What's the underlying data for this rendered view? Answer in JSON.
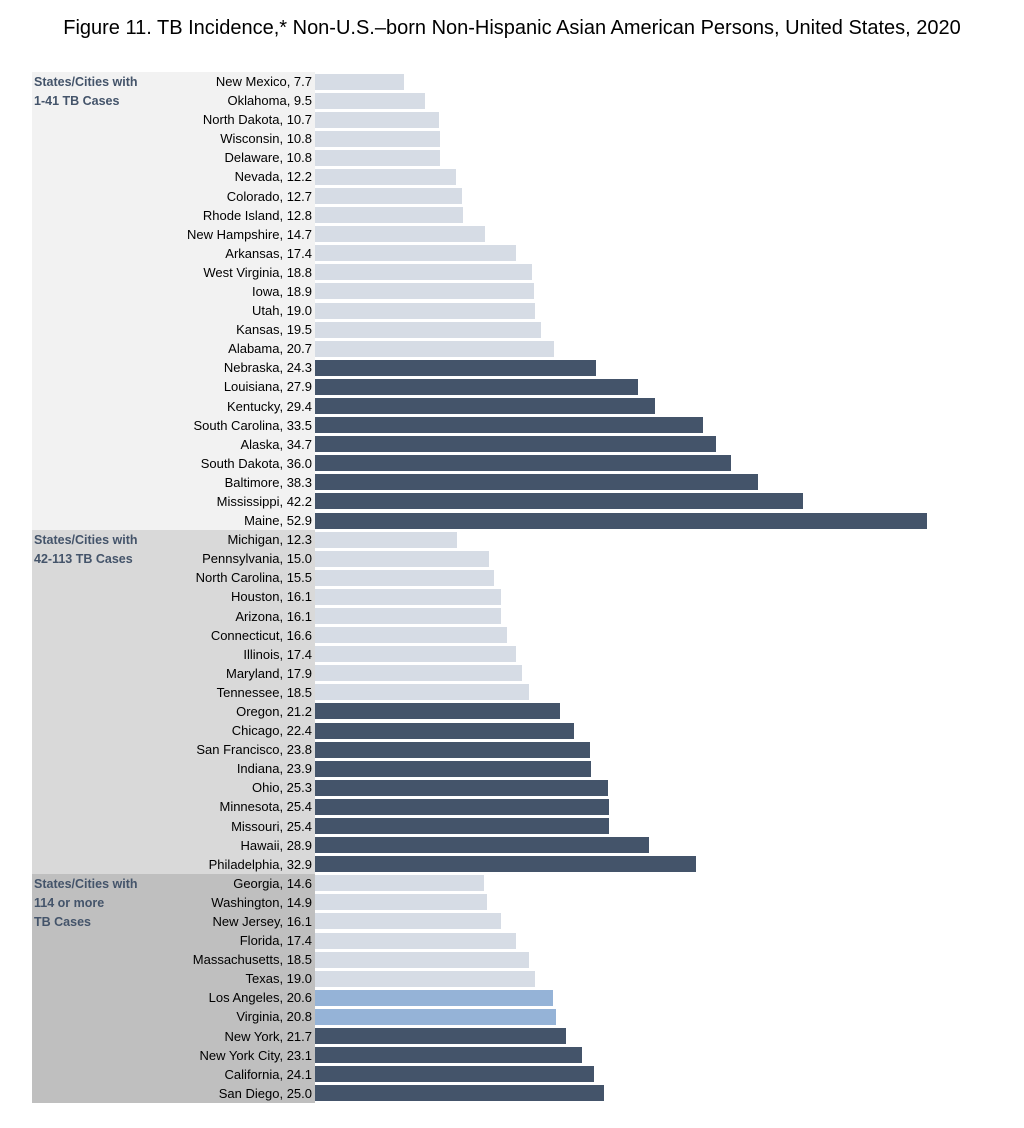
{
  "title": "Figure 11.  TB Incidence,* Non-U.S.–born Non-Hispanic Asian American Persons, United States, 2020",
  "colors": {
    "light": "#d6dce5",
    "dark": "#44546a",
    "medium": "#95b3d7",
    "group_label": "#44546a",
    "panels": [
      "#f2f2f2",
      "#d9d9d9",
      "#bfbfbf"
    ]
  },
  "chart_data": {
    "type": "bar",
    "orientation": "horizontal",
    "title": "Figure 11.  TB Incidence,* Non-U.S.–born Non-Hispanic Asian American Persons, United States, 2020",
    "xlim": [
      0,
      53
    ],
    "grid": false,
    "groups": [
      {
        "label": "States/Cities with\n1-41 TB Cases",
        "items": [
          {
            "name": "New Mexico",
            "value": 7.7,
            "shade": "light"
          },
          {
            "name": "Oklahoma",
            "value": 9.5,
            "shade": "light"
          },
          {
            "name": "North Dakota",
            "value": 10.7,
            "shade": "light"
          },
          {
            "name": "Wisconsin",
            "value": 10.8,
            "shade": "light"
          },
          {
            "name": "Delaware",
            "value": 10.8,
            "shade": "light"
          },
          {
            "name": "Nevada",
            "value": 12.2,
            "shade": "light"
          },
          {
            "name": "Colorado",
            "value": 12.7,
            "shade": "light"
          },
          {
            "name": "Rhode Island",
            "value": 12.8,
            "shade": "light"
          },
          {
            "name": "New Hampshire",
            "value": 14.7,
            "shade": "light"
          },
          {
            "name": "Arkansas",
            "value": 17.4,
            "shade": "light"
          },
          {
            "name": "West Virginia",
            "value": 18.8,
            "shade": "light"
          },
          {
            "name": "Iowa",
            "value": 18.9,
            "shade": "light"
          },
          {
            "name": "Utah",
            "value": 19.0,
            "shade": "light"
          },
          {
            "name": "Kansas",
            "value": 19.5,
            "shade": "light"
          },
          {
            "name": "Alabama",
            "value": 20.7,
            "shade": "light"
          },
          {
            "name": "Nebraska",
            "value": 24.3,
            "shade": "dark"
          },
          {
            "name": "Louisiana",
            "value": 27.9,
            "shade": "dark"
          },
          {
            "name": "Kentucky",
            "value": 29.4,
            "shade": "dark"
          },
          {
            "name": "South Carolina",
            "value": 33.5,
            "shade": "dark"
          },
          {
            "name": "Alaska",
            "value": 34.7,
            "shade": "dark"
          },
          {
            "name": "South Dakota",
            "value": 36.0,
            "shade": "dark"
          },
          {
            "name": "Baltimore",
            "value": 38.3,
            "shade": "dark"
          },
          {
            "name": "Mississippi",
            "value": 42.2,
            "shade": "dark"
          },
          {
            "name": "Maine",
            "value": 52.9,
            "shade": "dark"
          }
        ]
      },
      {
        "label": "States/Cities with\n42-113 TB Cases",
        "items": [
          {
            "name": "Michigan",
            "value": 12.3,
            "shade": "light"
          },
          {
            "name": "Pennsylvania",
            "value": 15.0,
            "shade": "light"
          },
          {
            "name": "North Carolina",
            "value": 15.5,
            "shade": "light"
          },
          {
            "name": "Houston",
            "value": 16.1,
            "shade": "light"
          },
          {
            "name": "Arizona",
            "value": 16.1,
            "shade": "light"
          },
          {
            "name": "Connecticut",
            "value": 16.6,
            "shade": "light"
          },
          {
            "name": "Illinois",
            "value": 17.4,
            "shade": "light"
          },
          {
            "name": "Maryland",
            "value": 17.9,
            "shade": "light"
          },
          {
            "name": "Tennessee",
            "value": 18.5,
            "shade": "light"
          },
          {
            "name": "Oregon",
            "value": 21.2,
            "shade": "dark"
          },
          {
            "name": "Chicago",
            "value": 22.4,
            "shade": "dark"
          },
          {
            "name": "San Francisco",
            "value": 23.8,
            "shade": "dark"
          },
          {
            "name": "Indiana",
            "value": 23.9,
            "shade": "dark"
          },
          {
            "name": "Ohio",
            "value": 25.3,
            "shade": "dark"
          },
          {
            "name": "Minnesota",
            "value": 25.4,
            "shade": "dark"
          },
          {
            "name": "Missouri",
            "value": 25.4,
            "shade": "dark"
          },
          {
            "name": "Hawaii",
            "value": 28.9,
            "shade": "dark"
          },
          {
            "name": "Philadelphia",
            "value": 32.9,
            "shade": "dark"
          }
        ]
      },
      {
        "label": "States/Cities with\n114 or more\nTB Cases",
        "items": [
          {
            "name": "Georgia",
            "value": 14.6,
            "shade": "light"
          },
          {
            "name": "Washington",
            "value": 14.9,
            "shade": "light"
          },
          {
            "name": "New Jersey",
            "value": 16.1,
            "shade": "light"
          },
          {
            "name": "Florida",
            "value": 17.4,
            "shade": "light"
          },
          {
            "name": "Massachusetts",
            "value": 18.5,
            "shade": "light"
          },
          {
            "name": "Texas",
            "value": 19.0,
            "shade": "light"
          },
          {
            "name": "Los Angeles",
            "value": 20.6,
            "shade": "medium"
          },
          {
            "name": "Virginia",
            "value": 20.8,
            "shade": "medium"
          },
          {
            "name": "New York",
            "value": 21.7,
            "shade": "dark"
          },
          {
            "name": "New York City",
            "value": 23.1,
            "shade": "dark"
          },
          {
            "name": "California",
            "value": 24.1,
            "shade": "dark"
          },
          {
            "name": "San Diego",
            "value": 25.0,
            "shade": "dark"
          }
        ]
      }
    ]
  }
}
